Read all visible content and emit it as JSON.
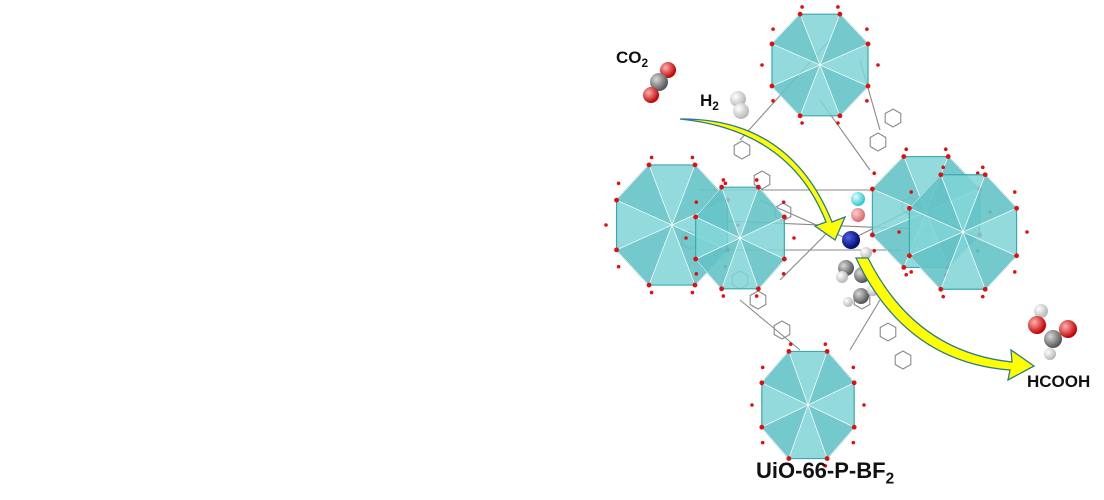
{
  "labels": {
    "co2_main": "CO",
    "co2_sub": "2",
    "h2_main": "H",
    "h2_sub": "2",
    "product": "HCOOH",
    "material_main": "UiO-66-P-BF",
    "material_sub": "2"
  },
  "colors": {
    "cluster_fill": "#7fd3d6",
    "cluster_dark": "#3aa9b0",
    "linker": "#777777",
    "arrow_fill": "#ffff00",
    "arrow_edge": "#2c7a8c",
    "oxygen": "#e01010",
    "carbon": "#808080",
    "hydrogen": "#f2f2f2",
    "nitrogen": "#0a1a9a",
    "boron": "#f09090",
    "fluorine": "#7ff0f0"
  }
}
